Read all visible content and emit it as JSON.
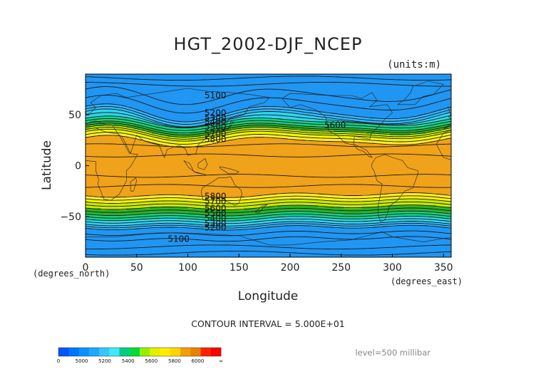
{
  "chart_data": {
    "type": "heatmap",
    "title": "HGT_2002-DJF_NCEP",
    "units_label": "(units:m)",
    "xlabel": "Longitude",
    "ylabel": "Latitude",
    "x_unit_label": "(degrees_east)",
    "y_unit_label": "(degrees_north)",
    "xlim": [
      0,
      357.5
    ],
    "ylim": [
      -90,
      90
    ],
    "x_ticks": [
      0,
      50,
      100,
      150,
      200,
      250,
      300,
      350
    ],
    "y_ticks": [
      50,
      0,
      -50
    ],
    "x_tick_labels": [
      "0",
      "50",
      "100",
      "150",
      "200",
      "250",
      "300",
      "350"
    ],
    "y_tick_labels": [
      "50",
      "0",
      "−50"
    ],
    "grid": false,
    "contour_interval_text": "CONTOUR INTERVAL = 5.000E+01",
    "level_text": "level=500 millibar",
    "contour_labels": [
      {
        "text": "5100",
        "lon": 127,
        "lat": 69
      },
      {
        "text": "5200",
        "lon": 127,
        "lat": 52
      },
      {
        "text": "5300",
        "lon": 127,
        "lat": 47
      },
      {
        "text": "5400",
        "lon": 127,
        "lat": 43
      },
      {
        "text": "5500",
        "lon": 127,
        "lat": 38
      },
      {
        "text": "5700",
        "lon": 127,
        "lat": 31
      },
      {
        "text": "5800",
        "lon": 127,
        "lat": 26
      },
      {
        "text": "5600",
        "lon": 244,
        "lat": 40
      },
      {
        "text": "5800",
        "lon": 127,
        "lat": -30
      },
      {
        "text": "5700",
        "lon": 127,
        "lat": -35
      },
      {
        "text": "5600",
        "lon": 127,
        "lat": -42
      },
      {
        "text": "5500",
        "lon": 127,
        "lat": -47
      },
      {
        "text": "5400",
        "lon": 127,
        "lat": -52
      },
      {
        "text": "5300",
        "lon": 127,
        "lat": -57
      },
      {
        "text": "5200",
        "lon": 127,
        "lat": -61
      },
      {
        "text": "5100",
        "lon": 91,
        "lat": -72
      }
    ],
    "bands": [
      {
        "value": 5000,
        "color": "#2196f3"
      },
      {
        "value": 5200,
        "color": "#33b6ff"
      },
      {
        "value": 5300,
        "color": "#2fd4ef"
      },
      {
        "value": 5400,
        "color": "#18d282"
      },
      {
        "value": 5500,
        "color": "#2ab32a"
      },
      {
        "value": 5600,
        "color": "#cbe800"
      },
      {
        "value": 5700,
        "color": "#f4f400"
      },
      {
        "value": 5750,
        "color": "#ffec30"
      },
      {
        "value": 5800,
        "color": "#f0a21a"
      }
    ],
    "colorbar": {
      "colors": [
        "#0055ff",
        "#0073ff",
        "#0a8fff",
        "#20a8ff",
        "#38c4ff",
        "#40e8ff",
        "#00cc88",
        "#00dd33",
        "#99ee00",
        "#e5ee00",
        "#ffee00",
        "#ffd400",
        "#f0a000",
        "#e88200",
        "#ff2200",
        "#ff0000"
      ],
      "tick_labels": [
        "0",
        "5000",
        "5200",
        "5400",
        "5600",
        "5800",
        "6000",
        "∞"
      ]
    }
  }
}
